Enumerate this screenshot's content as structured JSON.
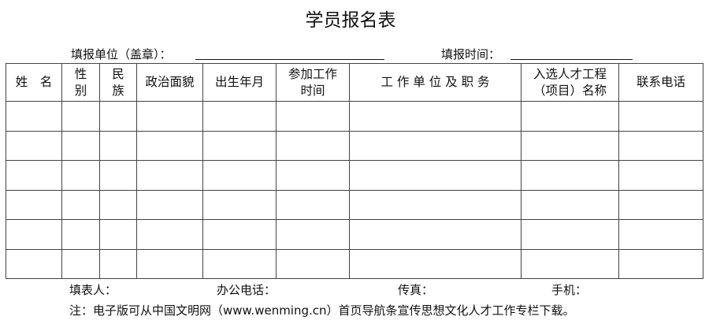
{
  "title": "学员报名表",
  "fill_unit_label": "填报单位（盖章）：",
  "fill_time_label": "填报时间：",
  "columns": [
    "姓　名",
    "性\n别",
    "民\n族",
    "政治面貌",
    "出生年月",
    "参加工作\n时间",
    "工 作 单 位 及 职 务",
    "入选人才工程\n（项目）名称",
    "联系电话"
  ],
  "row_count": 6,
  "footer": {
    "filler": "填表人：",
    "office_phone": "办公电话：",
    "fax": "传真：",
    "mobile": "手机："
  },
  "note": "注：电子版可从中国文明网（www.wenming.cn）首页导航条宣传思想文化人才工作专栏下载。"
}
